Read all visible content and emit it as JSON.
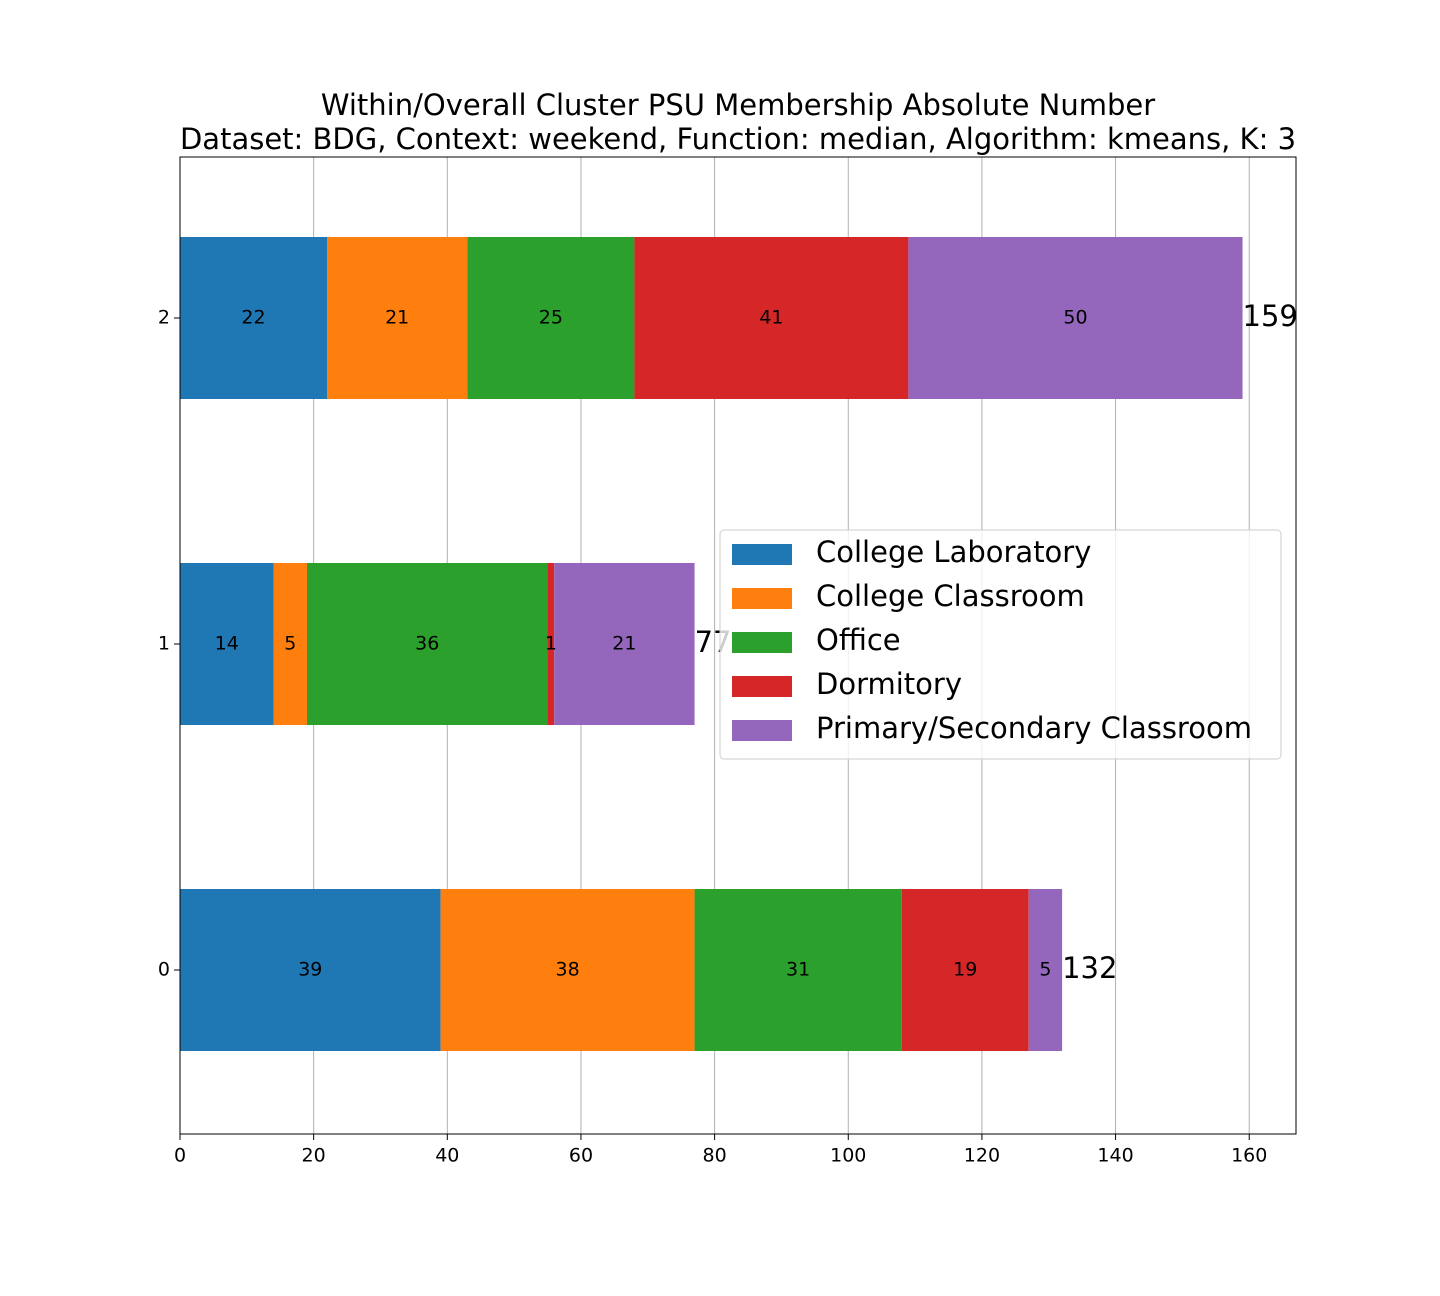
{
  "chart_data": {
    "type": "bar",
    "orientation": "horizontal",
    "stacked": true,
    "title_lines": [
      "Within/Overall Cluster PSU Membership Absolute Number",
      "Dataset: BDG, Context: weekend, Function: median, Algorithm: kmeans, K: 3"
    ],
    "categories": [
      "0",
      "1",
      "2"
    ],
    "series": [
      {
        "name": "College Laboratory",
        "color": "#1f77b4",
        "values": [
          39,
          14,
          22
        ]
      },
      {
        "name": "College Classroom",
        "color": "#ff7f0e",
        "values": [
          38,
          5,
          21
        ]
      },
      {
        "name": "Office",
        "color": "#2ca02c",
        "values": [
          31,
          36,
          25
        ]
      },
      {
        "name": "Dormitory",
        "color": "#d62728",
        "values": [
          19,
          1,
          41
        ]
      },
      {
        "name": "Primary/Secondary Classroom",
        "color": "#9467bd",
        "values": [
          5,
          21,
          50
        ]
      }
    ],
    "totals": [
      132,
      77,
      159
    ],
    "xlim": [
      0,
      167
    ],
    "xticks": [
      0,
      20,
      40,
      60,
      80,
      100,
      120,
      140,
      160
    ],
    "xlabel": "",
    "ylabel": "",
    "grid": "x",
    "legend_position": "center-right"
  }
}
